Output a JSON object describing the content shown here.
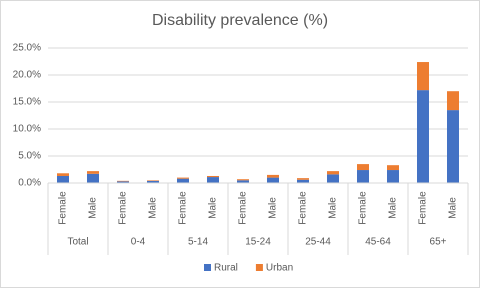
{
  "chart_data": {
    "type": "stacked_bar",
    "title": "Disability prevalence (%)",
    "categories": [
      "Female",
      "Male",
      "Female",
      "Male",
      "Female",
      "Male",
      "Female",
      "Male",
      "Female",
      "Male",
      "Female",
      "Male",
      "Female",
      "Male"
    ],
    "groups": [
      "Total",
      "0-4",
      "5-14",
      "15-24",
      "25-44",
      "45-64",
      "65+"
    ],
    "series": [
      {
        "name": "Rural",
        "color": "#4472c4",
        "values": [
          1.3,
          1.7,
          0.3,
          0.4,
          0.8,
          1.1,
          0.5,
          1.0,
          0.6,
          1.6,
          2.4,
          2.4,
          17.2,
          13.5
        ]
      },
      {
        "name": "Urban",
        "color": "#ed7d31",
        "values": [
          0.5,
          0.5,
          0.1,
          0.1,
          0.2,
          0.2,
          0.2,
          0.5,
          0.3,
          0.6,
          1.1,
          0.9,
          5.2,
          3.5
        ]
      }
    ],
    "ylim": [
      0,
      25
    ],
    "yticks": [
      {
        "value": 0,
        "label": "0.0%"
      },
      {
        "value": 5,
        "label": "5.0%"
      },
      {
        "value": 10,
        "label": "10.0%"
      },
      {
        "value": 15,
        "label": "15.0%"
      },
      {
        "value": 20,
        "label": "20.0%"
      },
      {
        "value": 25,
        "label": "25.0%"
      }
    ],
    "grid": true,
    "legend": "bottom"
  }
}
